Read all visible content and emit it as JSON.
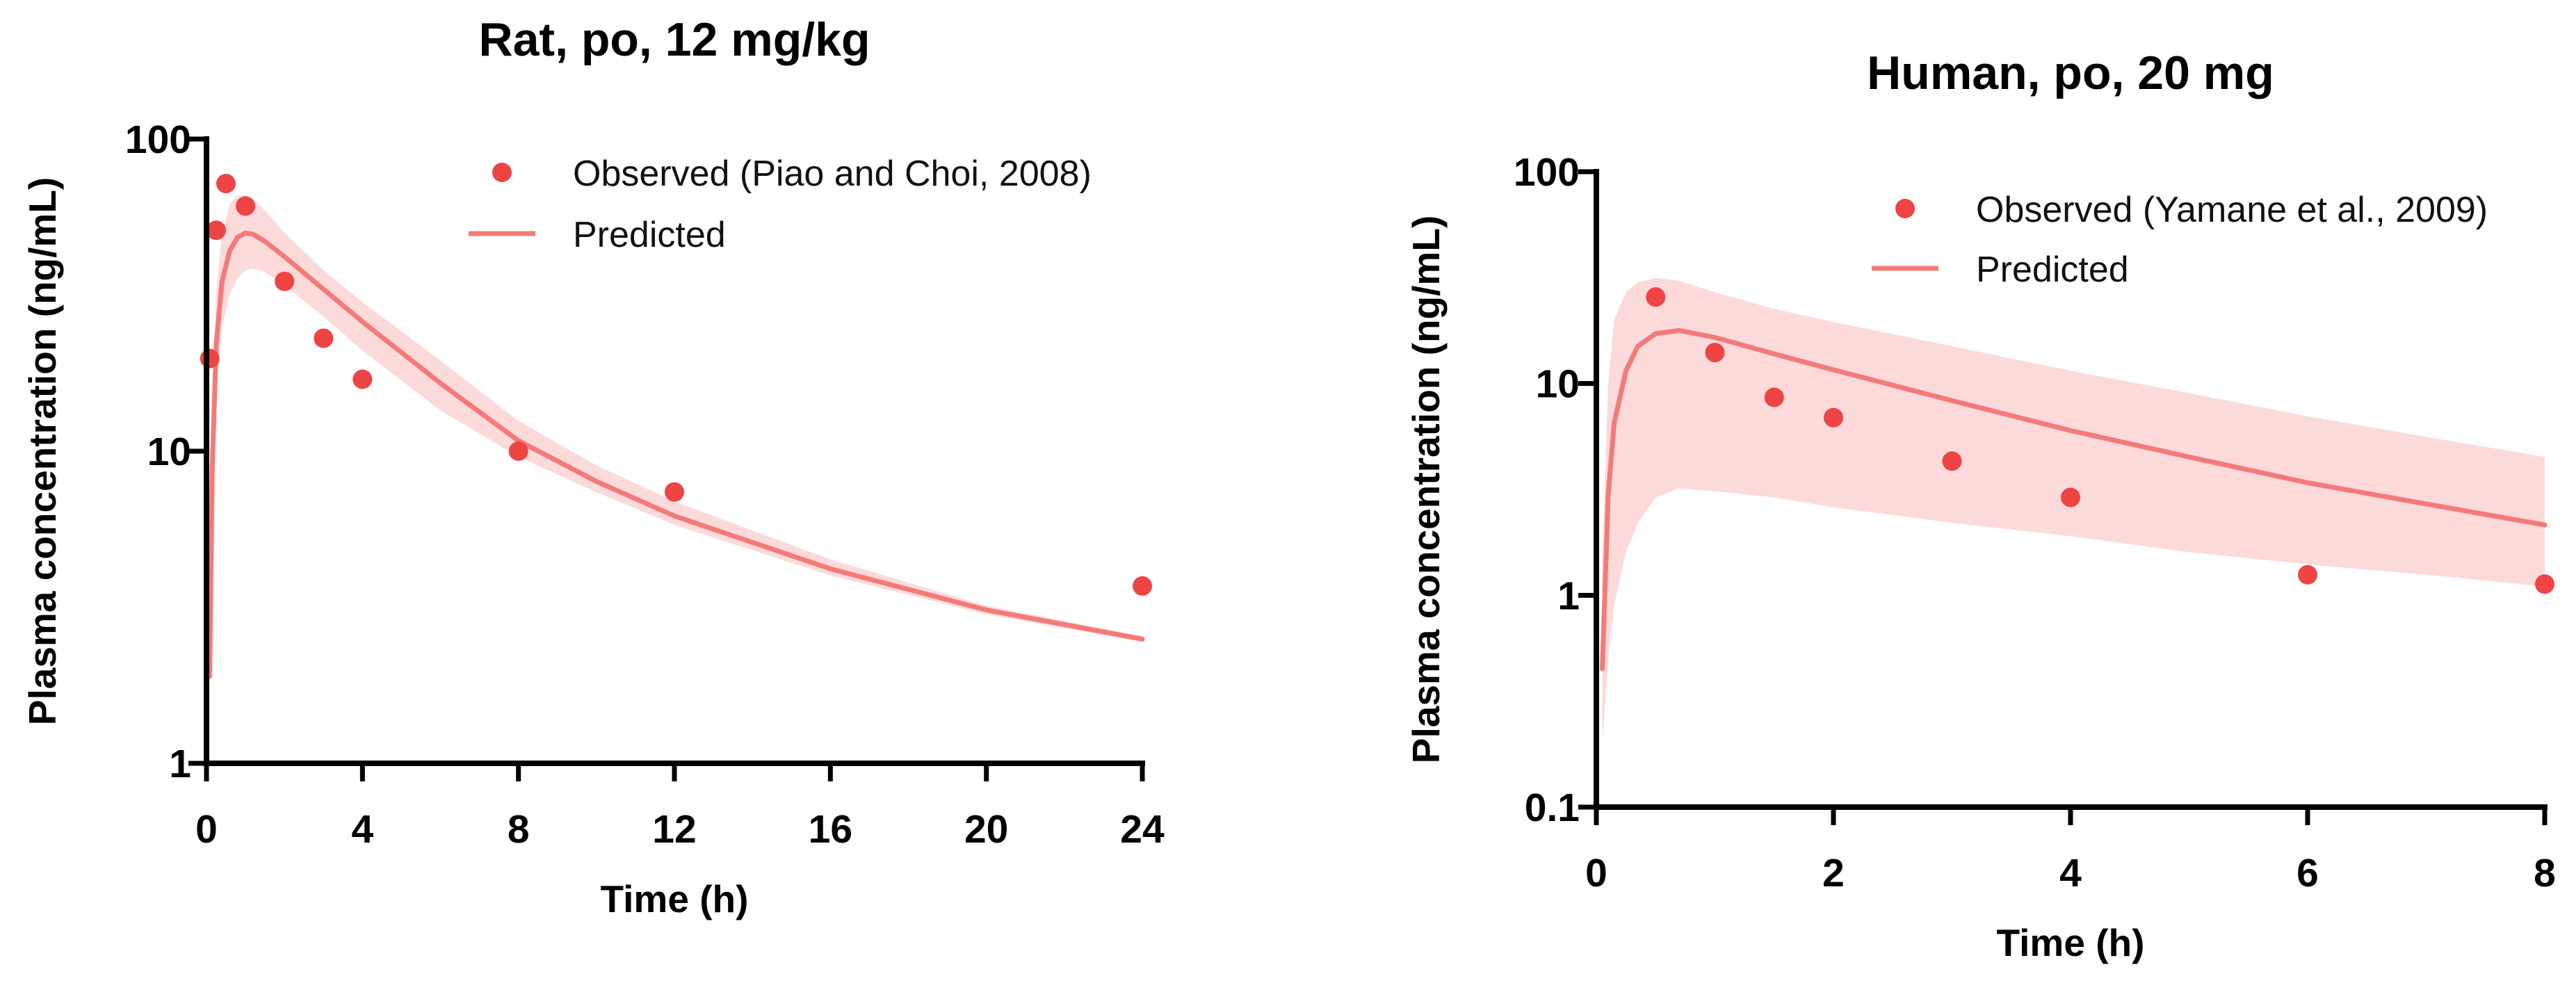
{
  "chart_data": [
    {
      "type": "line",
      "title": "Rat, po, 12 mg/kg",
      "xlabel": "Time (h)",
      "ylabel": "Plasma concentration (ng/mL)",
      "yscale": "log",
      "xlim": [
        0,
        24
      ],
      "ylim": [
        1,
        100
      ],
      "xticks": [
        0,
        4,
        8,
        12,
        16,
        20,
        24
      ],
      "xtick_labels": [
        "0",
        "4",
        "8",
        "12",
        "16",
        "20",
        "24"
      ],
      "yticks": [
        1,
        10,
        100
      ],
      "ytick_labels": [
        "1",
        "10",
        "100"
      ],
      "legend_position": "top-right",
      "colors": {
        "observed": "#ef4444",
        "predicted": "#f47a7a",
        "band": "#fcd3d3"
      },
      "series": [
        {
          "name": "Observed (Piao and Choi, 2008)",
          "kind": "scatter",
          "x": [
            0.083,
            0.25,
            0.5,
            1,
            2,
            3,
            4,
            8,
            12,
            24
          ],
          "y": [
            19.8,
            51,
            72,
            61,
            35,
            23,
            17,
            10,
            7.4,
            3.7
          ]
        },
        {
          "name": "Predicted",
          "kind": "line",
          "x": [
            0.08,
            0.15,
            0.25,
            0.4,
            0.6,
            0.8,
            1.0,
            1.2,
            1.5,
            2,
            3,
            4,
            6,
            8,
            10,
            12,
            16,
            20,
            24
          ],
          "y": [
            1.9,
            9,
            22,
            35,
            44,
            48.5,
            50,
            49.5,
            47,
            42,
            33,
            26,
            16.5,
            10.8,
            8.0,
            6.2,
            4.2,
            3.1,
            2.5
          ],
          "lower": [
            1.8,
            7,
            16,
            25,
            32,
            36,
            38,
            38.5,
            37.5,
            34,
            27,
            21,
            13.5,
            9.6,
            7.4,
            5.8,
            4.0,
            3.0,
            2.45
          ],
          "upper": [
            2.0,
            12,
            32,
            50,
            62,
            66,
            66,
            64,
            59,
            50,
            38,
            30,
            19.5,
            12.5,
            9.0,
            6.9,
            4.5,
            3.2,
            2.55
          ]
        }
      ]
    },
    {
      "type": "line",
      "title": "Human, po, 20 mg",
      "xlabel": "Time (h)",
      "ylabel": "Plasma concentration (ng/mL)",
      "yscale": "log",
      "xlim": [
        0,
        8
      ],
      "ylim": [
        0.1,
        100
      ],
      "xticks": [
        0,
        2,
        4,
        6,
        8
      ],
      "xtick_labels": [
        "0",
        "2",
        "4",
        "6",
        "8"
      ],
      "yticks": [
        0.1,
        1,
        10,
        100
      ],
      "ytick_labels": [
        "0.1",
        "1",
        "10",
        "100"
      ],
      "legend_position": "top-right",
      "colors": {
        "observed": "#ef4444",
        "predicted": "#f47a7a",
        "band": "#fcd3d3"
      },
      "series": [
        {
          "name": "Observed (Yamane et al., 2009)",
          "kind": "scatter",
          "x": [
            0.5,
            1,
            1.5,
            2,
            3,
            4,
            6,
            8
          ],
          "y": [
            25.6,
            14,
            8.6,
            6.9,
            4.3,
            2.9,
            1.25,
            1.13
          ]
        },
        {
          "name": "Predicted",
          "kind": "line",
          "x": [
            0.05,
            0.1,
            0.15,
            0.25,
            0.35,
            0.5,
            0.7,
            1,
            1.5,
            2,
            3,
            4,
            5,
            6,
            7,
            8
          ],
          "y": [
            0.45,
            3.0,
            6.5,
            11.5,
            15,
            17.2,
            17.8,
            16.5,
            13.8,
            11.6,
            8.3,
            6.0,
            4.5,
            3.4,
            2.7,
            2.15
          ],
          "lower": [
            0.2,
            0.5,
            0.9,
            1.6,
            2.2,
            2.9,
            3.2,
            3.1,
            2.9,
            2.6,
            2.2,
            1.9,
            1.6,
            1.4,
            1.25,
            1.1
          ],
          "upper": [
            1.5,
            10,
            20,
            27,
            30,
            31.5,
            30.5,
            27,
            22.5,
            19.5,
            15,
            11.5,
            9.0,
            7.0,
            5.6,
            4.5
          ]
        }
      ]
    }
  ]
}
